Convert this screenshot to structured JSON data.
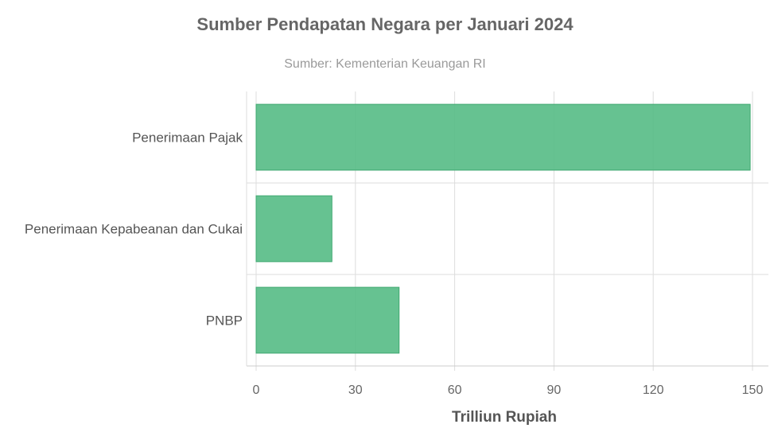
{
  "chart_data": {
    "type": "bar",
    "orientation": "horizontal",
    "title": "Sumber Pendapatan Negara per Januari 2024",
    "subtitle": "Sumber: Kementerian Keuangan RI",
    "categories": [
      "Penerimaan Pajak",
      "Penerimaan Kepabeanan dan Cukai",
      "PNBP"
    ],
    "values": [
      149.3,
      22.9,
      43.2
    ],
    "xlabel": "Trilliun Rupiah",
    "ylabel": "",
    "xlim": [
      0,
      150
    ],
    "x_ticks": [
      "0",
      "30",
      "60",
      "90",
      "120",
      "150"
    ],
    "tick_values": [
      0,
      30,
      60,
      90,
      120,
      150
    ],
    "grid": true,
    "colors": {
      "bar_fill": "#55bb85",
      "bar_stroke": "#3fa870"
    }
  }
}
